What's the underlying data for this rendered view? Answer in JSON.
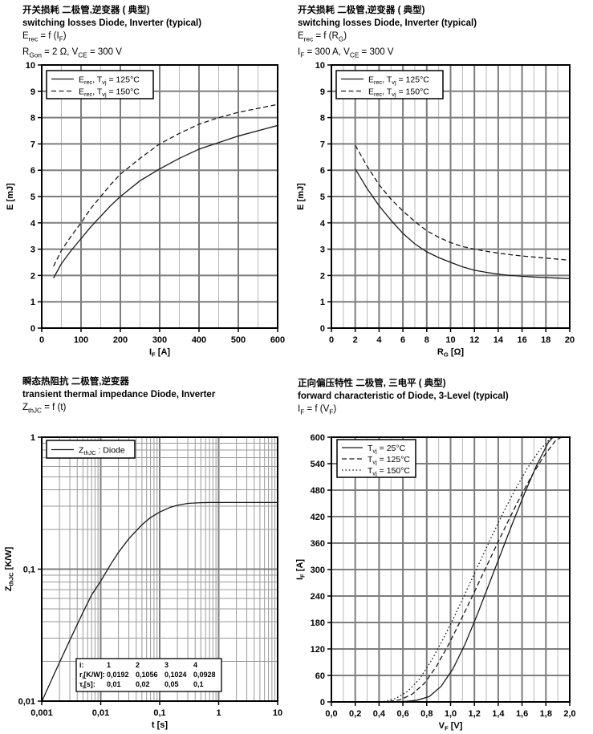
{
  "page": {
    "background": "#ffffff"
  },
  "colors": {
    "grid_major": "#7d7d7d",
    "grid_minor": "#b9b9b9",
    "grid_log_minor": "#9a9a9a",
    "axis": "#000000",
    "curve": "#1a1a1a",
    "legend_border": "#000000",
    "legend_bg": "#ffffff"
  },
  "charts": [
    {
      "title_zh": "开关损耗 二极管,逆变器  ( 典型)",
      "title_en": "switching losses Diode, Inverter (typical)",
      "formula": "E_{rec} = f (I_{F})",
      "conditions": "R_{Gon} = 2 Ω, V_{CE} = 300 V"
    },
    {
      "title_zh": "开关损耗 二极管,逆变器  ( 典型)",
      "title_en": "switching losses Diode, Inverter (typical)",
      "formula": "E_{rec} = f (R_{G})",
      "conditions": "I_{F} = 300 A, V_{CE} = 300 V"
    },
    {
      "title_zh": "瞬态热阻抗 二极管,逆变器",
      "title_en": "transient thermal impedance Diode, Inverter",
      "formula": "Z_{thJC} = f (t)",
      "conditions": ""
    },
    {
      "title_zh": "正向偏压特性 二极管, 三电平  ( 典型)",
      "title_en": "forward characteristic of Diode, 3-Level (typical)",
      "formula": "I_{F} = f (V_{F})",
      "conditions": ""
    }
  ],
  "chart_data": [
    {
      "type": "line",
      "title": "switching losses Diode, Inverter (typical), Erec = f (IF)",
      "grid": true,
      "x": {
        "label": "I_{F} [A]",
        "type": "linear",
        "min": 0,
        "max": 600,
        "minor_step": 50,
        "major_ticks": [
          0,
          100,
          200,
          300,
          400,
          500,
          600
        ],
        "tick_labels": [
          "0",
          "100",
          "200",
          "300",
          "400",
          "500",
          "600"
        ]
      },
      "y": {
        "label": "E [mJ]",
        "type": "linear",
        "min": 0,
        "max": 10,
        "major_ticks": [
          0,
          1,
          2,
          3,
          4,
          5,
          6,
          7,
          8,
          9,
          10
        ],
        "tick_labels": [
          "0",
          "1",
          "2",
          "3",
          "4",
          "5",
          "6",
          "7",
          "8",
          "9",
          "10"
        ]
      },
      "legend": {
        "position": "top-left",
        "entries": [
          {
            "label": "E_{rec}, T_{vj} = 125°C",
            "style": "solid"
          },
          {
            "label": "E_{rec}, T_{vj} = 150°C",
            "style": "dashed"
          }
        ]
      },
      "series": [
        {
          "name": "Erec Tvj=125C",
          "style": "solid",
          "points": [
            [
              30,
              1.9
            ],
            [
              50,
              2.45
            ],
            [
              75,
              2.95
            ],
            [
              100,
              3.4
            ],
            [
              125,
              3.85
            ],
            [
              150,
              4.25
            ],
            [
              175,
              4.65
            ],
            [
              200,
              5.0
            ],
            [
              250,
              5.6
            ],
            [
              300,
              6.05
            ],
            [
              350,
              6.45
            ],
            [
              400,
              6.8
            ],
            [
              450,
              7.05
            ],
            [
              500,
              7.3
            ],
            [
              550,
              7.5
            ],
            [
              600,
              7.7
            ]
          ]
        },
        {
          "name": "Erec Tvj=150C",
          "style": "dashed",
          "points": [
            [
              30,
              2.35
            ],
            [
              50,
              2.95
            ],
            [
              75,
              3.5
            ],
            [
              100,
              4.0
            ],
            [
              125,
              4.55
            ],
            [
              150,
              5.0
            ],
            [
              175,
              5.45
            ],
            [
              200,
              5.85
            ],
            [
              250,
              6.45
            ],
            [
              300,
              7.0
            ],
            [
              350,
              7.4
            ],
            [
              400,
              7.75
            ],
            [
              450,
              8.0
            ],
            [
              500,
              8.2
            ],
            [
              550,
              8.35
            ],
            [
              600,
              8.5
            ]
          ]
        }
      ]
    },
    {
      "type": "line",
      "title": "switching losses Diode, Inverter (typical), Erec = f (RG)",
      "grid": true,
      "x": {
        "label": "R_{G} [Ω]",
        "type": "linear",
        "min": 0,
        "max": 20,
        "minor_step": 1,
        "major_ticks": [
          0,
          2,
          4,
          6,
          8,
          10,
          12,
          14,
          16,
          18,
          20
        ],
        "tick_labels": [
          "0",
          "2",
          "4",
          "6",
          "8",
          "10",
          "12",
          "14",
          "16",
          "18",
          "20"
        ]
      },
      "y": {
        "label": "E [mJ]",
        "type": "linear",
        "min": 0,
        "max": 10,
        "major_ticks": [
          0,
          1,
          2,
          3,
          4,
          5,
          6,
          7,
          8,
          9,
          10
        ],
        "tick_labels": [
          "0",
          "1",
          "2",
          "3",
          "4",
          "5",
          "6",
          "7",
          "8",
          "9",
          "10"
        ]
      },
      "legend": {
        "position": "top-left",
        "entries": [
          {
            "label": "E_{rec}, T_{vj} = 125°C",
            "style": "solid"
          },
          {
            "label": "E_{rec}, T_{vj} = 150°C",
            "style": "dashed"
          }
        ]
      },
      "series": [
        {
          "name": "Erec Tvj=125C",
          "style": "solid",
          "points": [
            [
              2,
              6.05
            ],
            [
              3,
              5.3
            ],
            [
              4,
              4.65
            ],
            [
              5,
              4.1
            ],
            [
              6,
              3.6
            ],
            [
              7,
              3.2
            ],
            [
              8,
              2.9
            ],
            [
              9,
              2.68
            ],
            [
              10,
              2.5
            ],
            [
              11,
              2.33
            ],
            [
              12,
              2.2
            ],
            [
              13,
              2.12
            ],
            [
              14,
              2.05
            ],
            [
              15,
              2.0
            ],
            [
              16,
              1.97
            ],
            [
              17,
              1.94
            ],
            [
              18,
              1.92
            ],
            [
              19,
              1.9
            ],
            [
              20,
              1.88
            ]
          ]
        },
        {
          "name": "Erec Tvj=150C",
          "style": "dashed",
          "points": [
            [
              2,
              6.95
            ],
            [
              3,
              6.15
            ],
            [
              4,
              5.45
            ],
            [
              5,
              4.9
            ],
            [
              6,
              4.45
            ],
            [
              7,
              4.05
            ],
            [
              8,
              3.7
            ],
            [
              9,
              3.45
            ],
            [
              10,
              3.25
            ],
            [
              11,
              3.1
            ],
            [
              12,
              3.0
            ],
            [
              13,
              2.92
            ],
            [
              14,
              2.85
            ],
            [
              15,
              2.79
            ],
            [
              16,
              2.74
            ],
            [
              17,
              2.7
            ],
            [
              18,
              2.66
            ],
            [
              19,
              2.62
            ],
            [
              20,
              2.58
            ]
          ]
        }
      ]
    },
    {
      "type": "line",
      "title": "transient thermal impedance Diode, Inverter, ZthJC = f (t)",
      "grid": true,
      "x": {
        "label": "t [s]",
        "type": "log",
        "min": 0.001,
        "max": 10,
        "major_ticks": [
          0.001,
          0.01,
          0.1,
          1,
          10
        ],
        "tick_labels": [
          "0,001",
          "0,01",
          "0,1",
          "1",
          "10"
        ]
      },
      "y": {
        "label": "Z_{thJC} [K/W]",
        "type": "log",
        "min": 0.01,
        "max": 1,
        "major_ticks": [
          0.01,
          0.1,
          1
        ],
        "tick_labels": [
          "0,01",
          "0,1",
          "1"
        ]
      },
      "legend": {
        "position": "top-left",
        "entries": [
          {
            "label": "Z_{thJC} : Diode",
            "style": "solid"
          }
        ]
      },
      "inset_table": {
        "rows": [
          [
            "i:",
            "1",
            "2",
            "3",
            "4"
          ],
          [
            "r_{i}[K/W]:",
            "0,0192",
            "0,1056",
            "0,1024",
            "0,0928"
          ],
          [
            "τ_{i}[s]:",
            "0,01",
            "0,02",
            "0,05",
            "0,1"
          ]
        ]
      },
      "series": [
        {
          "name": "ZthJC Diode",
          "style": "solid",
          "points": [
            [
              0.001,
              0.0099
            ],
            [
              0.0015,
              0.0148
            ],
            [
              0.002,
              0.0196
            ],
            [
              0.003,
              0.029
            ],
            [
              0.005,
              0.047
            ],
            [
              0.007,
              0.0637
            ],
            [
              0.01,
              0.0811
            ],
            [
              0.015,
              0.11
            ],
            [
              0.02,
              0.134
            ],
            [
              0.03,
              0.17
            ],
            [
              0.05,
              0.217
            ],
            [
              0.07,
              0.246
            ],
            [
              0.1,
              0.271
            ],
            [
              0.15,
              0.294
            ],
            [
              0.2,
              0.305
            ],
            [
              0.3,
              0.315
            ],
            [
              0.5,
              0.319
            ],
            [
              0.7,
              0.32
            ],
            [
              1,
              0.32
            ],
            [
              2,
              0.32
            ],
            [
              5,
              0.32
            ],
            [
              10,
              0.32
            ]
          ]
        }
      ]
    },
    {
      "type": "line",
      "title": "forward characteristic of Diode, 3-Level (typical), IF = f (VF)",
      "grid": true,
      "x": {
        "label": "V_{F} [V]",
        "type": "linear",
        "min": 0,
        "max": 2,
        "minor_step": 0.1,
        "major_ticks": [
          0,
          0.2,
          0.4,
          0.6,
          0.8,
          1.0,
          1.2,
          1.4,
          1.6,
          1.8,
          2.0
        ],
        "tick_labels": [
          "0,0",
          "0,2",
          "0,4",
          "0,6",
          "0,8",
          "1,0",
          "1,2",
          "1,4",
          "1,6",
          "1,8",
          "2,0"
        ]
      },
      "y": {
        "label": "I_{F} [A]",
        "type": "linear",
        "min": 0,
        "max": 600,
        "major_ticks": [
          0,
          60,
          120,
          180,
          240,
          300,
          360,
          420,
          480,
          540,
          600
        ],
        "tick_labels": [
          "0",
          "60",
          "120",
          "180",
          "240",
          "300",
          "360",
          "420",
          "480",
          "540",
          "600"
        ]
      },
      "legend": {
        "position": "top-left",
        "entries": [
          {
            "label": "T_{vj} = 25°C",
            "style": "solid"
          },
          {
            "label": "T_{vj} = 125°C",
            "style": "dashed"
          },
          {
            "label": "T_{vj} = 150°C",
            "style": "dotted"
          }
        ]
      },
      "series": [
        {
          "name": "Tvj=25C",
          "style": "solid",
          "points": [
            [
              0.55,
              0
            ],
            [
              0.62,
              1
            ],
            [
              0.72,
              4
            ],
            [
              0.82,
              12
            ],
            [
              0.92,
              35
            ],
            [
              1.02,
              75
            ],
            [
              1.12,
              130
            ],
            [
              1.22,
              195
            ],
            [
              1.32,
              265
            ],
            [
              1.42,
              335
            ],
            [
              1.52,
              405
            ],
            [
              1.62,
              472
            ],
            [
              1.72,
              535
            ],
            [
              1.82,
              588
            ],
            [
              1.86,
              600
            ]
          ]
        },
        {
          "name": "Tvj=125C",
          "style": "dashed",
          "points": [
            [
              0.42,
              0
            ],
            [
              0.48,
              1
            ],
            [
              0.58,
              5
            ],
            [
              0.68,
              18
            ],
            [
              0.78,
              42
            ],
            [
              0.88,
              80
            ],
            [
              0.98,
              128
            ],
            [
              1.08,
              182
            ],
            [
              1.18,
              238
            ],
            [
              1.28,
              295
            ],
            [
              1.38,
              352
            ],
            [
              1.48,
              408
            ],
            [
              1.58,
              462
            ],
            [
              1.68,
              512
            ],
            [
              1.78,
              556
            ],
            [
              1.88,
              592
            ],
            [
              1.93,
              600
            ]
          ]
        },
        {
          "name": "Tvj=150C",
          "style": "dotted",
          "points": [
            [
              0.38,
              0
            ],
            [
              0.44,
              1
            ],
            [
              0.54,
              8
            ],
            [
              0.64,
              24
            ],
            [
              0.74,
              52
            ],
            [
              0.84,
              94
            ],
            [
              0.94,
              144
            ],
            [
              1.04,
              198
            ],
            [
              1.14,
              256
            ],
            [
              1.24,
              314
            ],
            [
              1.34,
              372
            ],
            [
              1.44,
              428
            ],
            [
              1.54,
              480
            ],
            [
              1.64,
              528
            ],
            [
              1.74,
              568
            ],
            [
              1.84,
              598
            ],
            [
              1.87,
              600
            ]
          ]
        }
      ]
    }
  ]
}
